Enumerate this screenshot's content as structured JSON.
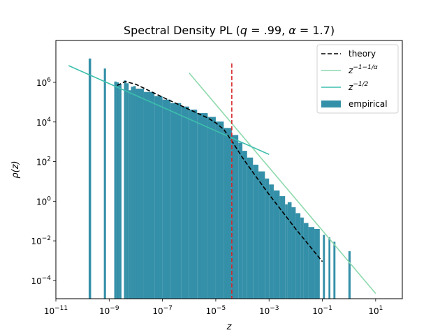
{
  "chart_data": {
    "type": "bar",
    "title": "Spectral Density PL (q = .99, α = 1.7)",
    "xlabel": "z",
    "ylabel": "ρ(z)",
    "xscale": "log",
    "yscale": "log",
    "xlim": [
      1e-11,
      100
    ],
    "ylim": [
      1.2e-05,
      130000000.0
    ],
    "xticks": [
      {
        "value": 1e-11,
        "base": "10",
        "exp": "−11"
      },
      {
        "value": 1e-09,
        "base": "10",
        "exp": "−9"
      },
      {
        "value": 1e-07,
        "base": "10",
        "exp": "−7"
      },
      {
        "value": 1e-05,
        "base": "10",
        "exp": "−5"
      },
      {
        "value": 0.001,
        "base": "10",
        "exp": "−3"
      },
      {
        "value": 0.1,
        "base": "10",
        "exp": "−1"
      },
      {
        "value": 10,
        "base": "10",
        "exp": "1"
      }
    ],
    "yticks": [
      {
        "value": 0.0001,
        "base": "10",
        "exp": "−4"
      },
      {
        "value": 0.01,
        "base": "10",
        "exp": "−2"
      },
      {
        "value": 1,
        "base": "10",
        "exp": "0"
      },
      {
        "value": 100,
        "base": "10",
        "exp": "2"
      },
      {
        "value": 10000.0,
        "base": "10",
        "exp": "4"
      },
      {
        "value": 1000000.0,
        "base": "10",
        "exp": "6"
      }
    ],
    "grid": false,
    "legend_position": "top-right",
    "colors": {
      "histogram": "#3490a8",
      "theory": "#000000",
      "tail_fit": "#8ed9ad",
      "head_fit": "#3dbfad",
      "threshold": "#d62728"
    },
    "legend": [
      {
        "label": "theory",
        "style": "dashed-line",
        "color": "#000000"
      },
      {
        "label": "z",
        "sup": "−1−1/α",
        "style": "line",
        "color": "#8ed9ad"
      },
      {
        "label": "z",
        "sup": "−1/2",
        "style": "line",
        "color": "#3dbfad"
      },
      {
        "label": "empirical",
        "style": "patch",
        "color": "#3490a8"
      }
    ],
    "histogram": {
      "bins": [
        {
          "z0": 1.7e-10,
          "z1": 2.1e-10,
          "density": 16000000.0
        },
        {
          "z0": 6.3e-10,
          "z1": 7.6e-10,
          "density": 5000000.0
        },
        {
          "z0": 1.55e-09,
          "z1": 1.9e-09,
          "density": 1100000.0
        },
        {
          "z0": 1.9e-09,
          "z1": 2.3e-09,
          "density": 1000000.0
        },
        {
          "z0": 2.3e-09,
          "z1": 2.9e-09,
          "density": 850000.0
        },
        {
          "z0": 3.6e-09,
          "z1": 4.4e-09,
          "density": 1250000.0
        },
        {
          "z0": 4.4e-09,
          "z1": 5.4e-09,
          "density": 900000.0
        },
        {
          "z0": 5.4e-09,
          "z1": 6.6e-09,
          "density": 400000.0
        },
        {
          "z0": 6.6e-09,
          "z1": 8.1e-09,
          "density": 600000.0
        },
        {
          "z0": 8.1e-09,
          "z1": 1e-08,
          "density": 650000.0
        },
        {
          "z0": 1e-08,
          "z1": 2e-08,
          "density": 480000.0
        },
        {
          "z0": 2e-08,
          "z1": 5e-08,
          "density": 330000.0
        },
        {
          "z0": 5e-08,
          "z1": 1e-07,
          "density": 200000.0
        },
        {
          "z0": 1e-07,
          "z1": 2e-07,
          "density": 135000.0
        },
        {
          "z0": 2e-07,
          "z1": 5e-07,
          "density": 90000.0
        },
        {
          "z0": 5e-07,
          "z1": 1e-06,
          "density": 60000.0
        },
        {
          "z0": 1e-06,
          "z1": 2e-06,
          "density": 42000.0
        },
        {
          "z0": 2e-06,
          "z1": 5e-06,
          "density": 28000.0
        },
        {
          "z0": 5e-06,
          "z1": 1e-05,
          "density": 18000.0
        },
        {
          "z0": 1e-05,
          "z1": 2e-05,
          "density": 10500.0
        },
        {
          "z0": 2e-05,
          "z1": 4e-05,
          "density": 5000.0
        },
        {
          "z0": 4e-05,
          "z1": 7e-05,
          "density": 2200.0
        },
        {
          "z0": 7e-05,
          "z1": 0.0001,
          "density": 900
        },
        {
          "z0": 0.0001,
          "z1": 0.00015,
          "density": 350
        },
        {
          "z0": 0.00015,
          "z1": 0.00025,
          "density": 160
        },
        {
          "z0": 0.00025,
          "z1": 0.0004,
          "density": 70
        },
        {
          "z0": 0.0004,
          "z1": 0.0007,
          "density": 32
        },
        {
          "z0": 0.0007,
          "z1": 0.001,
          "density": 14
        },
        {
          "z0": 0.001,
          "z1": 0.0015,
          "density": 7
        },
        {
          "z0": 0.0015,
          "z1": 0.0025,
          "density": 3.5
        },
        {
          "z0": 0.0025,
          "z1": 0.004,
          "density": 1.8
        },
        {
          "z0": 0.004,
          "z1": 0.005,
          "density": 0.7
        },
        {
          "z0": 0.005,
          "z1": 0.007,
          "density": 0.9
        },
        {
          "z0": 0.007,
          "z1": 0.01,
          "density": 0.5
        },
        {
          "z0": 0.01,
          "z1": 0.015,
          "density": 0.25
        },
        {
          "z0": 0.015,
          "z1": 0.02,
          "density": 0.15
        },
        {
          "z0": 0.02,
          "z1": 0.03,
          "density": 0.08
        },
        {
          "z0": 0.03,
          "z1": 0.05,
          "density": 0.05
        },
        {
          "z0": 0.05,
          "z1": 0.08,
          "density": 0.04
        },
        {
          "z0": 0.105,
          "z1": 0.125,
          "density": 0.02
        },
        {
          "z0": 0.17,
          "z1": 0.2,
          "density": 0.015
        },
        {
          "z0": 0.26,
          "z1": 0.31,
          "density": 0.009
        },
        {
          "z0": 0.95,
          "z1": 1.15,
          "density": 0.003
        }
      ]
    },
    "theory_curve": {
      "z": [
        2e-09,
        4e-09,
        1e-08,
        1e-07,
        1e-06,
        5e-06,
        1e-05,
        2e-05,
        4e-05,
        0.0001,
        0.0003,
        0.001,
        0.01,
        0.1
      ],
      "rho": [
        700000.0,
        1100000.0,
        800000.0,
        180000.0,
        43000.0,
        16000.0,
        9000.0,
        4200.0,
        1100.0,
        160,
        20,
        2.2,
        0.04,
        0.0009
      ]
    },
    "tail_fit": {
      "z": [
        1e-06,
        10
      ],
      "rho": [
        3000000.0,
        2.2e-05
      ]
    },
    "head_fit": {
      "z": [
        3e-11,
        0.001
      ],
      "rho": [
        7000000.0,
        230
      ]
    },
    "threshold": {
      "z": 4e-05,
      "rho_range": [
        1.2e-05,
        9000000.0
      ]
    }
  }
}
